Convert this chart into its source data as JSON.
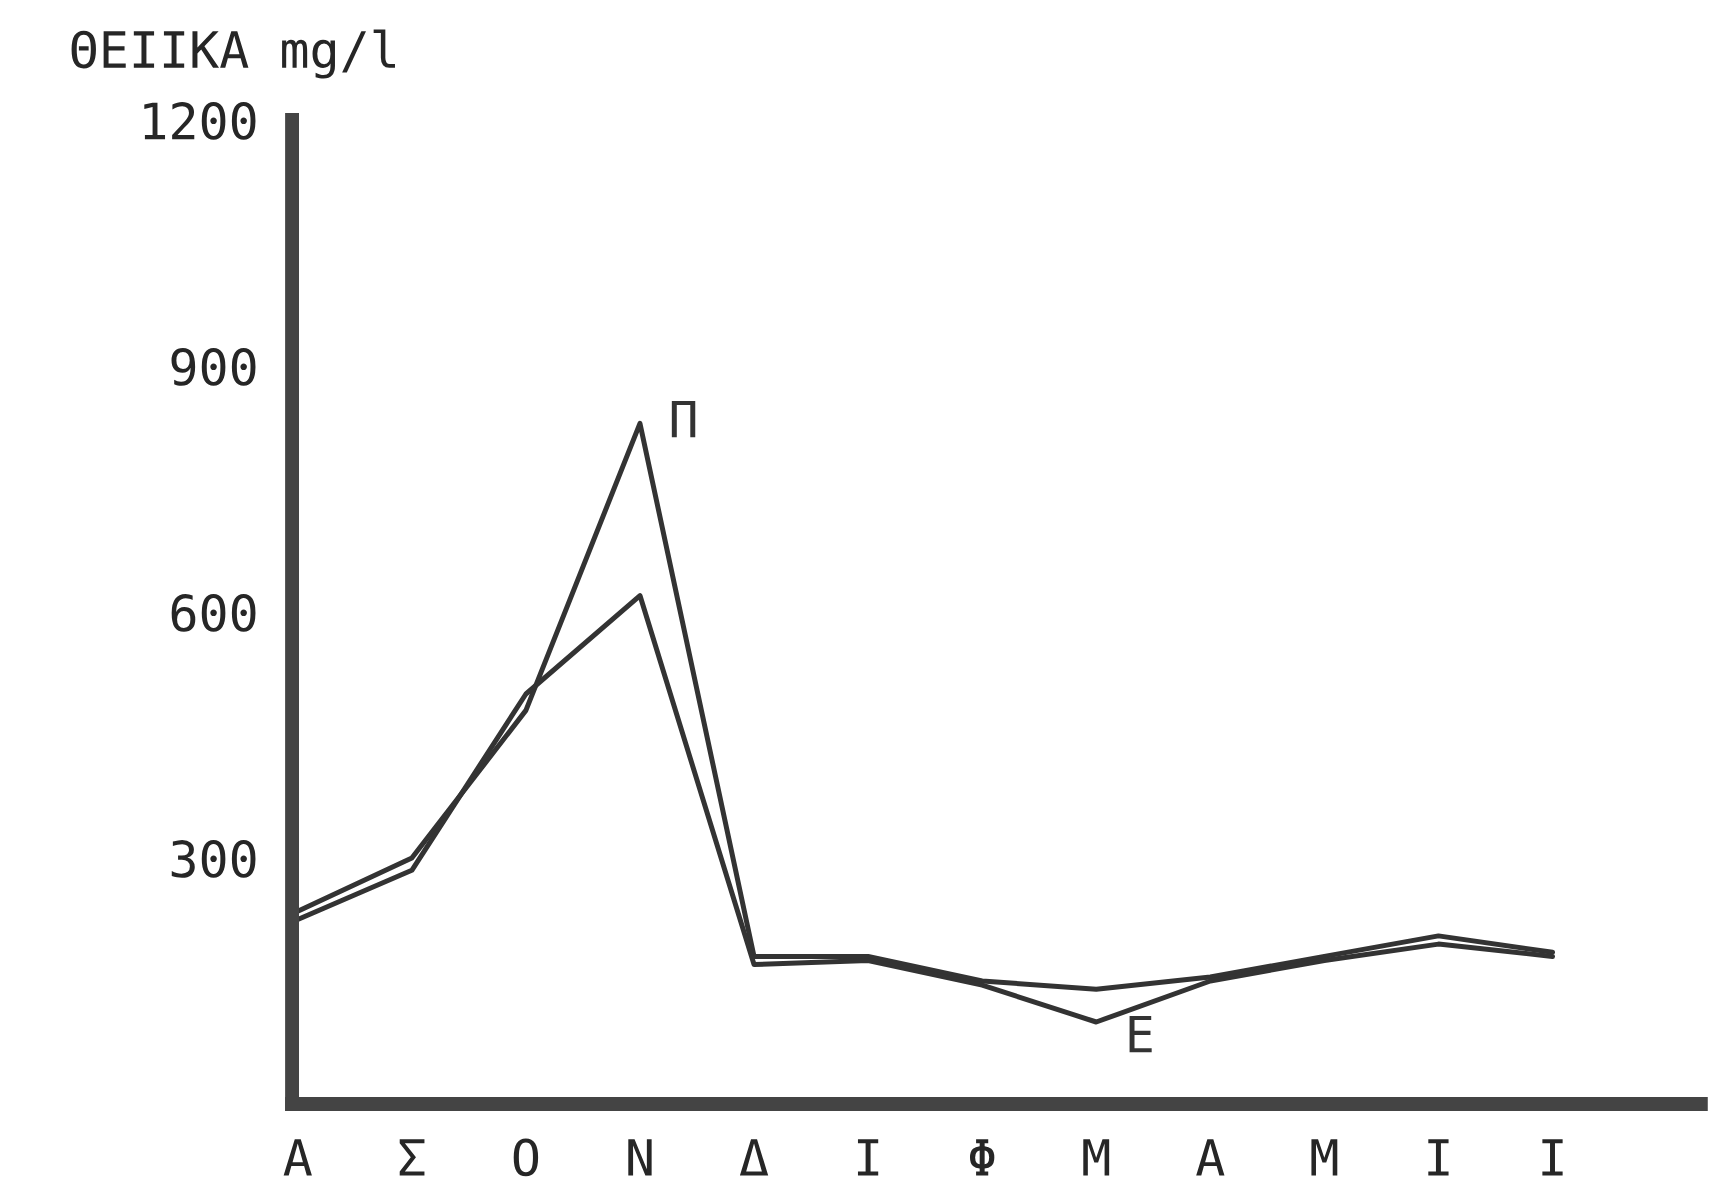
{
  "chart_data": {
    "type": "line",
    "ylabel": "ΘΕΙΙΚΑ mg/l",
    "categories": [
      "Α",
      "Σ",
      "Ο",
      "Ν",
      "Δ",
      "Ι",
      "Φ",
      "Μ",
      "Α",
      "Μ",
      "Ι",
      "Ι"
    ],
    "series": [
      {
        "name": "Π",
        "color": "#333333",
        "values": [
          235,
          300,
          480,
          830,
          180,
          180,
          150,
          140,
          155,
          180,
          205,
          185
        ]
      },
      {
        "name": "Ε",
        "color": "#333333",
        "values": [
          225,
          285,
          500,
          620,
          170,
          175,
          145,
          100,
          150,
          175,
          195,
          180
        ]
      }
    ],
    "ylim": [
      0,
      1200
    ],
    "yticks": [
      300,
      600,
      900,
      1200
    ],
    "grid": false,
    "legend": false,
    "marker": "none",
    "line_style": "solid"
  }
}
